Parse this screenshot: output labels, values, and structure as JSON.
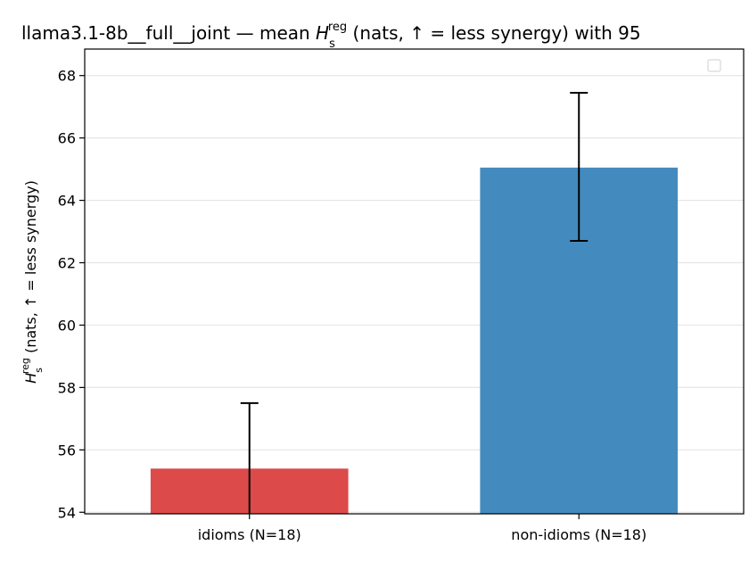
{
  "chart_data": {
    "type": "bar",
    "title": {
      "prefix": "llama3.1-8b__full__joint — mean ",
      "symbol": "H",
      "sub": "s",
      "sup": "reg",
      "suffix": " (nats, ↑ = less synergy) with 95"
    },
    "ylabel": {
      "symbol": "H",
      "sub": "s",
      "sup": "reg",
      "suffix": " (nats, ↑ = less synergy)"
    },
    "categories": [
      "idioms (N=18)",
      "non-idioms (N=18)"
    ],
    "values": [
      55.4,
      65.05
    ],
    "error_low": [
      53.9,
      62.7
    ],
    "error_high": [
      57.5,
      67.45
    ],
    "colors": [
      "#dc4a4a",
      "#438bbf"
    ],
    "ylim": [
      53.95,
      68.85
    ],
    "yticks": [
      54,
      56,
      58,
      60,
      62,
      64,
      66,
      68
    ],
    "grid": true,
    "legend": {
      "placement": "top-right",
      "entries": []
    }
  }
}
